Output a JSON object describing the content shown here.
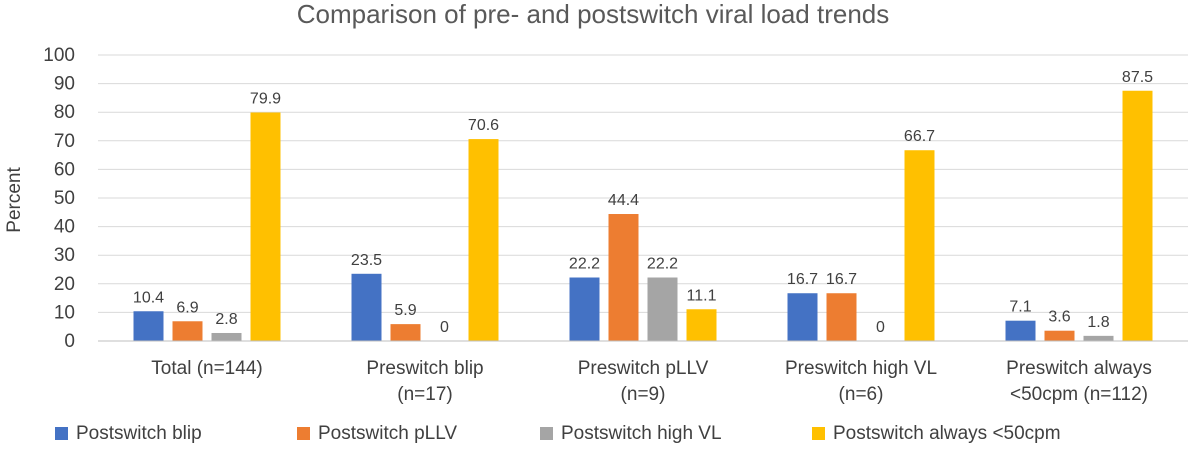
{
  "chart_data": {
    "type": "bar",
    "title": "Comparison of pre- and postswitch viral load trends",
    "xlabel": "",
    "ylabel": "Percent",
    "ylim": [
      0,
      100
    ],
    "yticks": [
      0,
      10,
      20,
      30,
      40,
      50,
      60,
      70,
      80,
      90,
      100
    ],
    "grid": true,
    "legend_position": "bottom",
    "categories": [
      [
        "Total (n=144)"
      ],
      [
        "Preswitch blip",
        "(n=17)"
      ],
      [
        "Preswitch pLLV",
        "(n=9)"
      ],
      [
        "Preswitch high VL",
        "(n=6)"
      ],
      [
        "Preswitch always",
        "<50cpm (n=112)"
      ]
    ],
    "series": [
      {
        "name": "Postswitch blip",
        "color": "#4472C4",
        "values": [
          10.4,
          23.5,
          22.2,
          16.7,
          7.1
        ]
      },
      {
        "name": "Postswitch pLLV",
        "color": "#ED7D31",
        "values": [
          6.9,
          5.9,
          44.4,
          16.7,
          3.6
        ]
      },
      {
        "name": "Postswitch high VL",
        "color": "#A5A5A5",
        "values": [
          2.8,
          0,
          22.2,
          0,
          1.8
        ]
      },
      {
        "name": "Postswitch always <50cpm",
        "color": "#FFC000",
        "values": [
          79.9,
          70.6,
          11.1,
          66.7,
          87.5
        ]
      }
    ]
  }
}
